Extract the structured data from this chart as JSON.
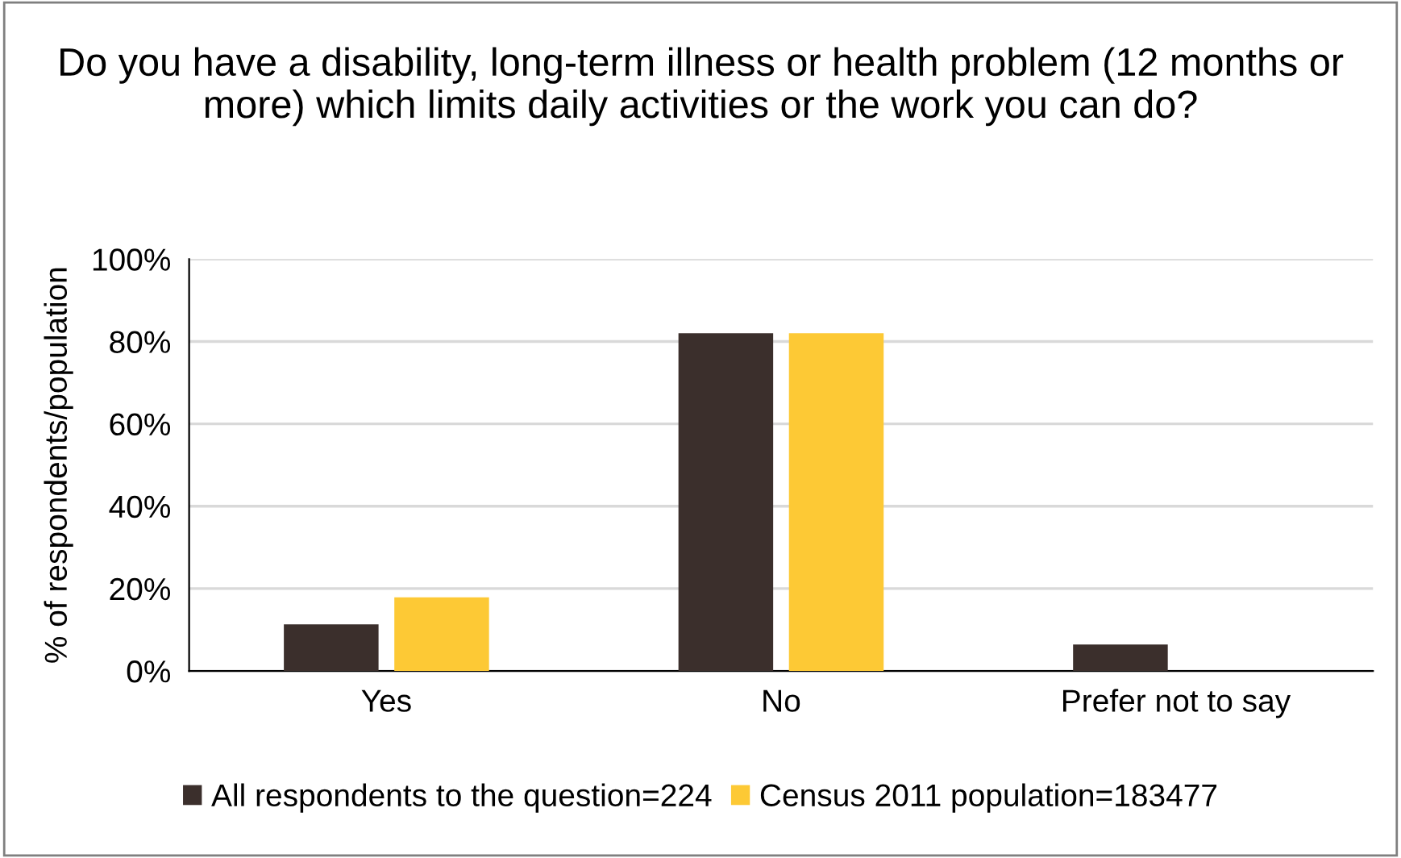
{
  "chart_data": {
    "type": "bar",
    "title": "Do you have a disability, long-term illness or health problem (12 months or more) which limits daily activities or the work you can do?",
    "ylabel": "% of respondents/population",
    "categories": [
      "Yes",
      "No",
      "Prefer not to say"
    ],
    "series": [
      {
        "name": "All respondents to the question=224",
        "color": "#3b2f2c",
        "values": [
          11.3,
          82,
          6.4
        ]
      },
      {
        "name": "Census 2011 population=183477",
        "color": "#fdc935",
        "values": [
          17.9,
          82,
          0
        ]
      }
    ],
    "ylim": [
      0,
      100
    ],
    "yticks": [
      {
        "value": 0,
        "label": "0%"
      },
      {
        "value": 20,
        "label": "20%"
      },
      {
        "value": 40,
        "label": "40%"
      },
      {
        "value": 60,
        "label": "60%"
      },
      {
        "value": 80,
        "label": "80%"
      },
      {
        "value": 100,
        "label": "100%"
      }
    ],
    "grid": "y",
    "legend": "bottom"
  }
}
